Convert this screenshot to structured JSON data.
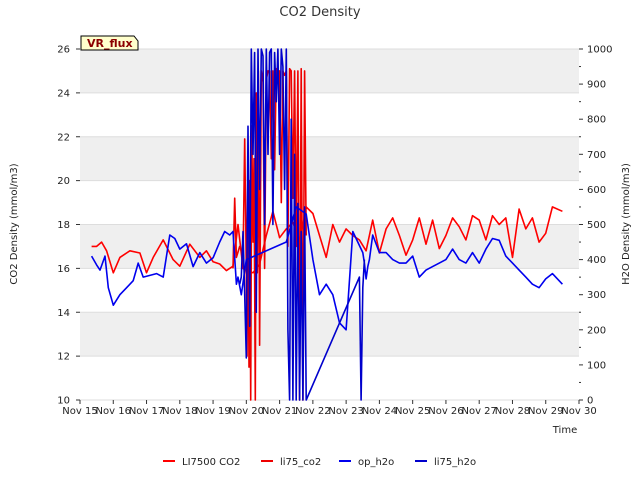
{
  "chart_data": {
    "type": "line",
    "title": "CO2 Density",
    "xlabel": "Time",
    "ylabel": "CO2 Density (mmol/m3)",
    "y2label": "H2O Density (mmol/m3)",
    "badge": "VR_flux",
    "xlim": [
      15,
      30
    ],
    "ylim": [
      10,
      26
    ],
    "y2lim": [
      0,
      1000
    ],
    "x_ticks": [
      "Nov 15",
      "Nov 16",
      "Nov 17",
      "Nov 18",
      "Nov 19",
      "Nov 20",
      "Nov 21",
      "Nov 22",
      "Nov 23",
      "Nov 24",
      "Nov 25",
      "Nov 26",
      "Nov 27",
      "Nov 28",
      "Nov 29",
      "Nov 30"
    ],
    "y_ticks": [
      "10",
      "12",
      "14",
      "16",
      "18",
      "20",
      "22",
      "24",
      "26"
    ],
    "y2_ticks": [
      "0",
      "100",
      "200",
      "300",
      "400",
      "500",
      "600",
      "700",
      "800",
      "900",
      "1000"
    ],
    "legend": [
      "LI7500 CO2",
      "li75_co2",
      "op_h2o",
      "li75_h2o"
    ],
    "colors": {
      "LI7500 CO2": "#ff0000",
      "li75_co2": "#ee0000",
      "op_h2o": "#0000ee",
      "li75_h2o": "#0000cc"
    },
    "series": [
      {
        "name": "LI7500 CO2",
        "axis": "left",
        "x": [
          15.35,
          15.5,
          15.65,
          15.8,
          16.0,
          16.2,
          16.5,
          16.8,
          17.0,
          17.2,
          17.5,
          17.8,
          18.0,
          18.3,
          18.6,
          18.8,
          19.0,
          19.2,
          19.4,
          19.6,
          19.75,
          19.9,
          20.0,
          20.2,
          20.4,
          20.6,
          20.8,
          21.0,
          21.2,
          21.4,
          21.6,
          21.8,
          22.0,
          22.2,
          22.4,
          22.6,
          22.8,
          23.0,
          23.2,
          23.4,
          23.6,
          23.8,
          24.0,
          24.2,
          24.4,
          24.6,
          24.8,
          25.0,
          25.2,
          25.4,
          25.6,
          25.8,
          26.0,
          26.2,
          26.4,
          26.6,
          26.8,
          27.0,
          27.2,
          27.4,
          27.6,
          27.8,
          28.0,
          28.2,
          28.4,
          28.6,
          28.8,
          29.0,
          29.2,
          29.5
        ],
        "values": [
          17.0,
          17.0,
          17.2,
          16.8,
          15.8,
          16.5,
          16.8,
          16.7,
          15.8,
          16.5,
          17.3,
          16.4,
          16.1,
          17.1,
          16.5,
          16.8,
          16.3,
          16.2,
          15.9,
          16.1,
          18.0,
          16.0,
          15.9,
          15.8,
          16.2,
          17.5,
          18.6,
          17.4,
          17.8,
          18.1,
          17.2,
          18.8,
          18.5,
          17.5,
          16.5,
          18.0,
          17.2,
          17.8,
          17.5,
          17.3,
          16.8,
          18.2,
          16.7,
          17.8,
          18.3,
          17.5,
          16.6,
          17.3,
          18.3,
          17.1,
          18.2,
          16.9,
          17.5,
          18.3,
          17.9,
          17.3,
          18.4,
          18.2,
          17.3,
          18.4,
          18.0,
          18.3,
          16.5,
          18.7,
          17.8,
          18.3,
          17.2,
          17.6,
          18.8,
          18.6
        ]
      },
      {
        "name": "li75_co2",
        "axis": "left",
        "x": [
          19.6,
          19.65,
          19.7,
          19.8,
          19.85,
          19.9,
          19.95,
          20.0,
          20.02,
          20.05,
          20.08,
          20.1,
          20.13,
          20.16,
          20.2,
          20.23,
          20.27,
          20.3,
          20.33,
          20.36,
          20.4,
          20.45,
          20.5,
          20.55,
          20.6,
          20.65,
          20.7,
          20.75,
          20.8,
          20.85,
          20.9,
          20.95,
          21.0,
          21.05,
          21.1,
          21.15,
          21.2,
          21.25,
          21.3,
          21.35,
          21.4,
          21.45,
          21.5,
          21.55,
          21.6,
          21.65,
          21.7,
          21.75,
          21.8
        ],
        "values": [
          16.0,
          19.2,
          16.5,
          17.0,
          16.8,
          16.2,
          21.9,
          16.0,
          12.0,
          19.5,
          11.5,
          20.0,
          10.0,
          22.5,
          17.2,
          21.0,
          10.0,
          24.0,
          15.8,
          25.0,
          12.5,
          25.0,
          24.5,
          16.0,
          24.6,
          25.0,
          25.0,
          21.0,
          25.0,
          20.5,
          25.1,
          25.0,
          25.0,
          19.0,
          25.0,
          24.8,
          25.0,
          17.0,
          25.1,
          25.0,
          19.2,
          25.0,
          17.0,
          25.0,
          10.0,
          25.1,
          10.0,
          25.0,
          17.5
        ]
      },
      {
        "name": "op_h2o",
        "axis": "right",
        "x": [
          15.35,
          15.5,
          15.6,
          15.75,
          15.85,
          16.0,
          16.2,
          16.4,
          16.6,
          16.75,
          16.9,
          17.1,
          17.3,
          17.5,
          17.7,
          17.85,
          18.0,
          18.2,
          18.4,
          18.6,
          18.8,
          19.0,
          19.2,
          19.35,
          19.5,
          19.6,
          19.7,
          19.75,
          19.85,
          20.0,
          21.2,
          21.5,
          21.8,
          22.0,
          22.2,
          22.4,
          22.6,
          22.8,
          23.0,
          23.2,
          23.3,
          23.5,
          23.55,
          23.6,
          23.65,
          23.7,
          23.8,
          24.0,
          24.2,
          24.4,
          24.6,
          24.8,
          25.0,
          25.2,
          25.4,
          25.6,
          25.8,
          26.0,
          26.2,
          26.4,
          26.6,
          26.8,
          27.0,
          27.2,
          27.4,
          27.6,
          27.8,
          28.0,
          28.2,
          28.4,
          28.6,
          28.8,
          29.0,
          29.2,
          29.5
        ],
        "values": [
          410,
          385,
          370,
          410,
          320,
          270,
          300,
          320,
          340,
          390,
          350,
          355,
          360,
          350,
          470,
          460,
          430,
          445,
          380,
          420,
          390,
          405,
          450,
          480,
          470,
          480,
          330,
          350,
          300,
          400,
          450,
          550,
          530,
          400,
          300,
          330,
          300,
          220,
          200,
          480,
          460,
          420,
          390,
          345,
          380,
          400,
          470,
          420,
          420,
          400,
          390,
          390,
          410,
          350,
          370,
          380,
          390,
          400,
          430,
          400,
          390,
          420,
          390,
          430,
          460,
          455,
          410,
          390,
          370,
          350,
          330,
          320,
          345,
          360,
          330
        ]
      },
      {
        "name": "li75_h2o",
        "axis": "right",
        "x": [
          19.8,
          19.85,
          19.9,
          19.95,
          20.0,
          20.05,
          20.1,
          20.15,
          20.2,
          20.25,
          20.3,
          20.35,
          20.4,
          20.45,
          20.5,
          20.55,
          20.6,
          20.65,
          20.7,
          20.75,
          20.8,
          20.85,
          20.9,
          20.95,
          21.0,
          21.05,
          21.1,
          21.15,
          21.2,
          21.25,
          21.3,
          21.35,
          21.4,
          21.45,
          21.5,
          21.55,
          21.6,
          21.65,
          21.7,
          21.75,
          21.8,
          23.4,
          23.45,
          23.5,
          23.55
        ],
        "values": [
          330,
          350,
          480,
          300,
          120,
          780,
          210,
          1000,
          700,
          990,
          250,
          1000,
          600,
          1000,
          980,
          500,
          1000,
          700,
          990,
          1000,
          500,
          990,
          850,
          1000,
          700,
          1000,
          950,
          600,
          1000,
          200,
          0,
          800,
          0,
          700,
          0,
          560,
          0,
          480,
          0,
          550,
          0,
          350,
          0,
          320,
          400
        ]
      }
    ]
  }
}
